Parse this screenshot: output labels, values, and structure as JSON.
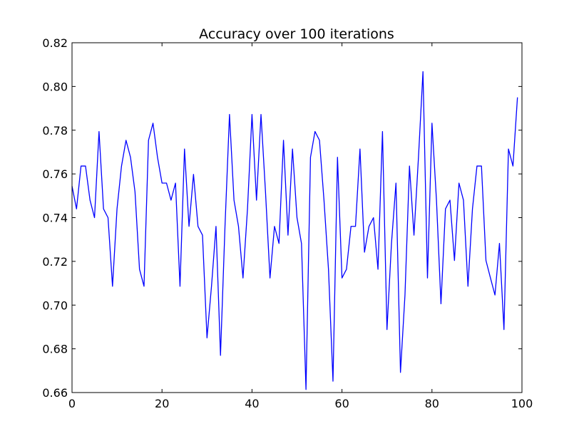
{
  "chart_data": {
    "type": "line",
    "title": "Accuracy over 100 iterations",
    "xlabel": "",
    "ylabel": "",
    "xlim": [
      0,
      100
    ],
    "ylim": [
      0.66,
      0.82
    ],
    "x_ticks": [
      0,
      20,
      40,
      60,
      80,
      100
    ],
    "x_tick_labels": [
      "0",
      "20",
      "40",
      "60",
      "80",
      "100"
    ],
    "y_ticks": [
      0.66,
      0.68,
      0.7,
      0.72,
      0.74,
      0.76,
      0.78,
      0.8,
      0.82
    ],
    "y_tick_labels": [
      "0.66",
      "0.68",
      "0.70",
      "0.72",
      "0.74",
      "0.76",
      "0.78",
      "0.80",
      "0.82"
    ],
    "grid": false,
    "legend": "none",
    "series": [
      {
        "color": "#0000ff",
        "x": [
          0,
          1,
          2,
          3,
          4,
          5,
          6,
          7,
          8,
          9,
          10,
          11,
          12,
          13,
          14,
          15,
          16,
          17,
          18,
          19,
          20,
          21,
          22,
          23,
          24,
          25,
          26,
          27,
          28,
          29,
          30,
          31,
          32,
          33,
          34,
          35,
          36,
          37,
          38,
          39,
          40,
          41,
          42,
          43,
          44,
          45,
          46,
          47,
          48,
          49,
          50,
          51,
          52,
          53,
          54,
          55,
          56,
          57,
          58,
          59,
          60,
          61,
          62,
          63,
          64,
          65,
          66,
          67,
          68,
          69,
          70,
          71,
          72,
          73,
          74,
          75,
          76,
          77,
          78,
          79,
          80,
          81,
          82,
          83,
          84,
          85,
          86,
          87,
          88,
          89,
          90,
          91,
          92,
          93,
          94,
          95,
          96,
          97,
          98,
          99
        ],
        "y": [
          0.7544,
          0.744,
          0.7636,
          0.7636,
          0.748,
          0.74,
          0.7794,
          0.744,
          0.74,
          0.7086,
          0.744,
          0.7636,
          0.7754,
          0.7676,
          0.7518,
          0.7164,
          0.7086,
          0.7754,
          0.7832,
          0.7676,
          0.7558,
          0.7558,
          0.748,
          0.7558,
          0.7086,
          0.7714,
          0.736,
          0.7598,
          0.736,
          0.732,
          0.685,
          0.7086,
          0.736,
          0.677,
          0.736,
          0.7872,
          0.748,
          0.736,
          0.7124,
          0.744,
          0.7872,
          0.748,
          0.7872,
          0.7518,
          0.7124,
          0.736,
          0.7282,
          0.7754,
          0.732,
          0.7714,
          0.74,
          0.7282,
          0.6614,
          0.7676,
          0.7794,
          0.7754,
          0.748,
          0.7164,
          0.6652,
          0.7676,
          0.7124,
          0.7164,
          0.736,
          0.736,
          0.7714,
          0.7242,
          0.736,
          0.74,
          0.7164,
          0.7794,
          0.6888,
          0.7282,
          0.7558,
          0.6692,
          0.7046,
          0.7636,
          0.732,
          0.7676,
          0.8068,
          0.7124,
          0.7832,
          0.748,
          0.7006,
          0.744,
          0.748,
          0.7204,
          0.7558,
          0.748,
          0.7086,
          0.744,
          0.7636,
          0.7636,
          0.7204,
          0.7124,
          0.7046,
          0.7282,
          0.6888,
          0.7714,
          0.7636,
          0.795
        ]
      }
    ]
  }
}
